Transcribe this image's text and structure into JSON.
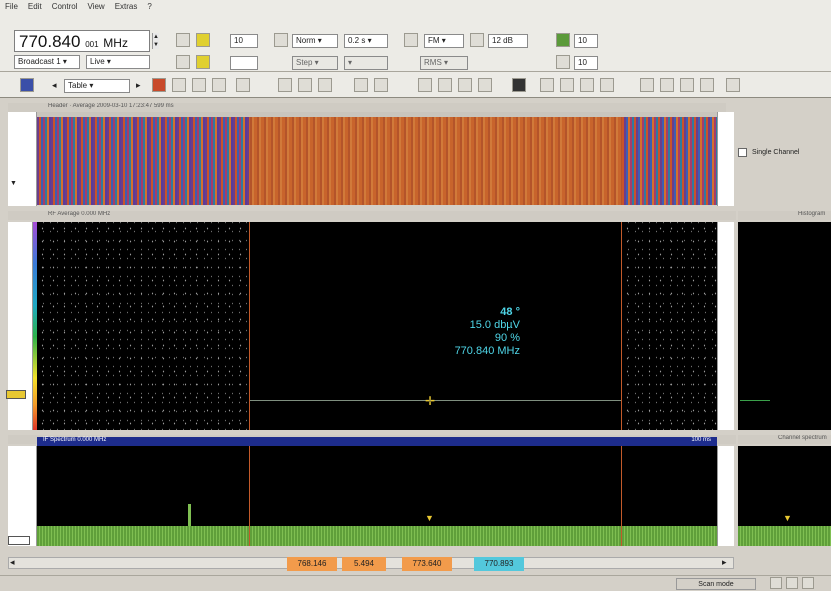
{
  "menu": [
    "File",
    "Edit",
    "Control",
    "View",
    "Extras",
    "?"
  ],
  "toolbar": {
    "frequency_value": "770.840",
    "frequency_decimals": "001",
    "frequency_unit": "MHz",
    "mode_select": "Broadcast 1",
    "list_select": "Live",
    "level_value": "10",
    "span_select": "Norm",
    "time_select": "0.2 s",
    "filter_select": "FM",
    "attenuation_select": "12 dB",
    "count_value": "10",
    "span2_value": "10",
    "detector_select": "RMS",
    "view_select": "Table"
  },
  "panels": {
    "waterfall_header": "Header · Average 2009-03-10 17:23:47 599 ms",
    "single_channel_label": "Single Channel",
    "spectrogram_header": "RF Average 0.000 MHz",
    "spectrogram_right_header": "Histogram",
    "spectrum_header": "IF Spectrum 0.000 MHz",
    "spectrum_time": "100 ms",
    "channel_right_header": "Channel spectrum"
  },
  "readout": {
    "angle": "48 °",
    "level": "15.0 dbµV",
    "quality": "90 %",
    "frequency": "770.840  MHz"
  },
  "status": {
    "start_freq": "768.146",
    "span": "5.494",
    "stop_freq": "773.640",
    "center_freq": "770.893",
    "mode_text": "Scan mode"
  },
  "colors": {
    "readout": "#4fd6e8",
    "start_box": "#f29b4b",
    "center_box": "#53c8dc",
    "marker": "#e8c832"
  }
}
